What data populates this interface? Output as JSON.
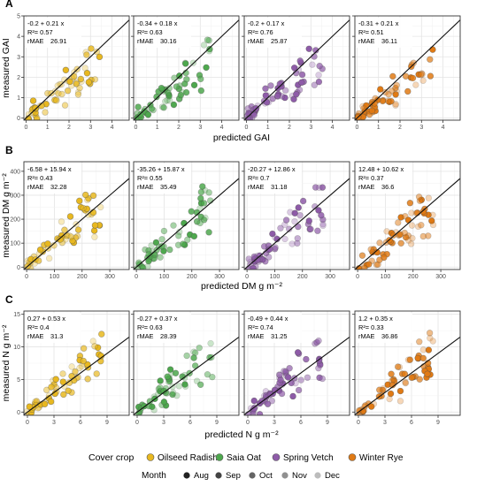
{
  "colors": {
    "Oilseed Radish": "#E8B820",
    "Saia Oat": "#4EA84E",
    "Spring Vetch": "#8E5BA8",
    "Winter Rye": "#E07A14"
  },
  "month_alpha": {
    "Aug": 1.0,
    "Sep": 0.85,
    "Oct": 0.7,
    "Nov": 0.5,
    "Dec": 0.3
  },
  "legend": {
    "crop_title": "Cover crop",
    "crops": [
      "Oilseed Radish",
      "Saia Oat",
      "Spring Vetch",
      "Winter Rye"
    ],
    "month_title": "Month",
    "months": [
      "Aug",
      "Sep",
      "Oct",
      "Nov",
      "Dec"
    ]
  },
  "chart_data": [
    {
      "type": "scatter",
      "panel_label": "A",
      "ylabel": "measured GAI",
      "xlabel": "predicted GAI",
      "xlim": [
        -0.1,
        4.8
      ],
      "ylim": [
        -0.1,
        5.0
      ],
      "xticks": [
        0,
        1,
        2,
        3,
        4
      ],
      "yticks": [
        0,
        1,
        2,
        3,
        4,
        5
      ],
      "facets": [
        {
          "crop": "Oilseed Radish",
          "eq": "-0.2 + 0.21 x",
          "r2": "R²= 0.57",
          "rmae_label": "rMAE",
          "rmae": "26.91",
          "fit": [
            -0.2,
            0.21
          ]
        },
        {
          "crop": "Saia Oat",
          "eq": "-0.34 + 0.18 x",
          "r2": "R²= 0.63",
          "rmae_label": "rMAE",
          "rmae": "30.16",
          "fit": [
            -0.34,
            0.18
          ]
        },
        {
          "crop": "Spring Vetch",
          "eq": "-0.2 + 0.17 x",
          "r2": "R²= 0.76",
          "rmae_label": "rMAE",
          "rmae": "25.87",
          "fit": [
            -0.2,
            0.17
          ]
        },
        {
          "crop": "Winter Rye",
          "eq": "-0.31 + 0.21 x",
          "r2": "R²= 0.51",
          "rmae_label": "rMAE",
          "rmae": "36.11",
          "fit": [
            -0.31,
            0.21
          ]
        }
      ]
    },
    {
      "type": "scatter",
      "panel_label": "B",
      "ylabel": "measured DM g m⁻²",
      "xlabel": "predicted DM g m⁻²",
      "xlim": [
        -10,
        370
      ],
      "ylim": [
        -10,
        440
      ],
      "xticks": [
        0,
        100,
        200,
        300
      ],
      "yticks": [
        0,
        100,
        200,
        300,
        400
      ],
      "facets": [
        {
          "crop": "Oilseed Radish",
          "eq": "-6.58 + 15.94 x",
          "r2": "R²= 0.43",
          "rmae_label": "rMAE",
          "rmae": "32.28",
          "fit": [
            -6.58,
            15.94
          ]
        },
        {
          "crop": "Saia Oat",
          "eq": "-35.26 + 15.87 x",
          "r2": "R²= 0.55",
          "rmae_label": "rMAE",
          "rmae": "35.49",
          "fit": [
            -35.26,
            15.87
          ]
        },
        {
          "crop": "Spring Vetch",
          "eq": "-20.27 + 12.86 x",
          "r2": "R²= 0.7",
          "rmae_label": "rMAE",
          "rmae": "31.18",
          "fit": [
            -20.27,
            12.86
          ]
        },
        {
          "crop": "Winter Rye",
          "eq": "12.48 + 10.62 x",
          "r2": "R²= 0.37",
          "rmae_label": "rMAE",
          "rmae": "36.6",
          "fit": [
            12.48,
            10.62
          ]
        }
      ]
    },
    {
      "type": "scatter",
      "panel_label": "C",
      "ylabel": "measured N g m⁻²",
      "xlabel": "predicted N g m⁻²",
      "xlim": [
        -0.4,
        11.5
      ],
      "ylim": [
        -0.5,
        15.5
      ],
      "xticks": [
        0,
        3,
        6,
        9
      ],
      "yticks": [
        0,
        5,
        10,
        15
      ],
      "facets": [
        {
          "crop": "Oilseed Radish",
          "eq": "0.27 + 0.53 x",
          "r2": "R²= 0.4",
          "rmae_label": "rMAE",
          "rmae": "31.3",
          "fit": [
            0.27,
            0.53
          ]
        },
        {
          "crop": "Saia Oat",
          "eq": "-0.27 + 0.37 x",
          "r2": "R²= 0.63",
          "rmae_label": "rMAE",
          "rmae": "28.39",
          "fit": [
            -0.27,
            0.37
          ]
        },
        {
          "crop": "Spring Vetch",
          "eq": "-0.49 + 0.44 x",
          "r2": "R²= 0.74",
          "rmae_label": "rMAE",
          "rmae": "31.25",
          "fit": [
            -0.49,
            0.44
          ]
        },
        {
          "crop": "Winter Rye",
          "eq": "1.2 + 0.35 x",
          "r2": "R²= 0.33",
          "rmae_label": "rMAE",
          "rmae": "36.86",
          "fit": [
            1.2,
            0.35
          ]
        }
      ]
    }
  ]
}
